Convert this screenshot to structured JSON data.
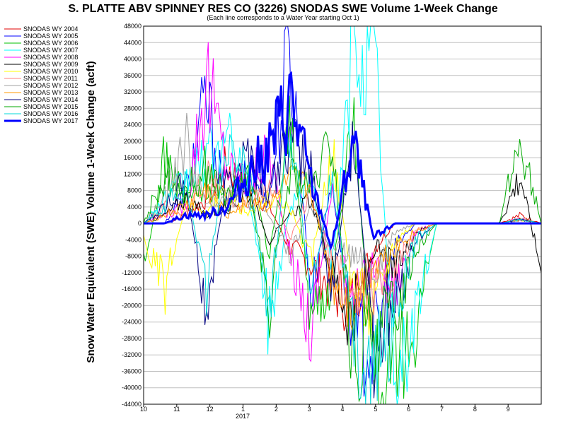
{
  "chart_data": {
    "type": "line",
    "title": "S. PLATTE ABV SPINNEY RES CO (3226) SNODAS SWE Volume 1-Week Change",
    "subtitle": "(Each line corresponds to a Water Year starting Oct 1)",
    "xlabel": "",
    "ylabel": "Snow Water Equivalent (SWE) Volume 1-Week Change (acft)",
    "x_ticks": [
      "10",
      "11",
      "12",
      "1",
      "2",
      "3",
      "4",
      "5",
      "6",
      "7",
      "8",
      "9"
    ],
    "x_year_label": "2017",
    "ylim": [
      -44000,
      48000
    ],
    "y_ticks": [
      48000,
      44000,
      40000,
      36000,
      32000,
      28000,
      24000,
      20000,
      16000,
      12000,
      8000,
      4000,
      0,
      -4000,
      -8000,
      -12000,
      -16000,
      -20000,
      -24000,
      -28000,
      -32000,
      -36000,
      -40000,
      -44000
    ],
    "grid": true,
    "legend_position": "left",
    "series": [
      {
        "name": "SNODAS WY 2004",
        "color": "#e00000",
        "values": [
          0,
          0,
          2000,
          6000,
          14000,
          8000,
          4000,
          -6000,
          -10000,
          -16000,
          -20000,
          -6000,
          0,
          0,
          0,
          0,
          0,
          0,
          2000,
          0
        ]
      },
      {
        "name": "SNODAS WY 2005",
        "color": "#0000ff",
        "values": [
          0,
          0,
          8000,
          30000,
          4000,
          12000,
          6000,
          44000,
          -18000,
          10000,
          -28000,
          -30000,
          -6000,
          0,
          0,
          0,
          0,
          0,
          1000,
          0
        ]
      },
      {
        "name": "SNODAS WY 2006",
        "color": "#00c000",
        "values": [
          -12000,
          16000,
          6000,
          10000,
          4000,
          16000,
          -8000,
          24000,
          -22000,
          -14000,
          26000,
          -36000,
          -42000,
          -24000,
          0,
          0,
          0,
          0,
          1000,
          0
        ]
      },
      {
        "name": "SNODAS WY 2007",
        "color": "#00ffff",
        "values": [
          0,
          6000,
          10000,
          16000,
          20000,
          8000,
          -24000,
          4000,
          10000,
          -12000,
          42000,
          46000,
          -40000,
          -22000,
          0,
          0,
          0,
          0,
          1000,
          0
        ]
      },
      {
        "name": "SNODAS WY 2008",
        "color": "#ff00ff",
        "values": [
          0,
          2000,
          4000,
          36000,
          14000,
          10000,
          18000,
          -8000,
          -26000,
          8000,
          -20000,
          -10000,
          -16000,
          -2000,
          0,
          0,
          0,
          0,
          1000,
          0
        ]
      },
      {
        "name": "SNODAS WY 2009",
        "color": "#000000",
        "values": [
          0,
          2000,
          6000,
          2000,
          4000,
          8000,
          -4000,
          2000,
          6000,
          -12000,
          -24000,
          -6000,
          -12000,
          -2000,
          0,
          0,
          0,
          0,
          12000,
          -12000
        ]
      },
      {
        "name": "SNODAS WY 2010",
        "color": "#ffff00",
        "values": [
          -4000,
          -16000,
          4000,
          2000,
          8000,
          2000,
          6000,
          4000,
          -10000,
          18000,
          -14000,
          -22000,
          -4000,
          0,
          0,
          0,
          0,
          0,
          1000,
          0
        ]
      },
      {
        "name": "SNODAS WY 2011",
        "color": "#ff8080",
        "values": [
          0,
          4000,
          2000,
          12000,
          6000,
          4000,
          10000,
          -4000,
          8000,
          -10000,
          -16000,
          -18000,
          -12000,
          -2000,
          0,
          0,
          0,
          0,
          1000,
          0
        ]
      },
      {
        "name": "SNODAS WY 2012",
        "color": "#a0a0a0",
        "values": [
          0,
          6000,
          20000,
          4000,
          8000,
          6000,
          2000,
          -8000,
          4000,
          -6000,
          -8000,
          -12000,
          -2000,
          0,
          0,
          0,
          0,
          0,
          1000,
          0
        ]
      },
      {
        "name": "SNODAS WY 2013",
        "color": "#ff9900",
        "values": [
          0,
          2000,
          4000,
          8000,
          2000,
          6000,
          4000,
          10000,
          8000,
          -14000,
          -20000,
          -10000,
          -6000,
          -2000,
          0,
          0,
          0,
          0,
          1000,
          0
        ]
      },
      {
        "name": "SNODAS WY 2014",
        "color": "#000080",
        "values": [
          0,
          4000,
          10000,
          -22000,
          12000,
          18000,
          8000,
          20000,
          14000,
          -18000,
          22000,
          -30000,
          -20000,
          -4000,
          0,
          0,
          0,
          0,
          1000,
          0
        ]
      },
      {
        "name": "SNODAS WY 2015",
        "color": "#00aa00",
        "values": [
          0,
          12000,
          8000,
          14000,
          6000,
          10000,
          -20000,
          12000,
          8000,
          20000,
          -34000,
          -26000,
          -22000,
          -6000,
          0,
          0,
          0,
          0,
          20000,
          0
        ]
      },
      {
        "name": "SNODAS WY 2016",
        "color": "#00d8d8",
        "values": [
          0,
          4000,
          10000,
          -16000,
          18000,
          14000,
          -22000,
          24000,
          -16000,
          12000,
          -28000,
          -36000,
          -24000,
          -4000,
          0,
          0,
          0,
          0,
          1000,
          0
        ]
      },
      {
        "name": "SNODAS WY 2017",
        "color": "#0000ff",
        "bold": true,
        "values": [
          0,
          0,
          2000,
          2000,
          4000,
          12000,
          18000,
          30000,
          10000,
          -6000,
          20000,
          -4000,
          0,
          0,
          0,
          0,
          0,
          0,
          0,
          0
        ]
      }
    ]
  }
}
